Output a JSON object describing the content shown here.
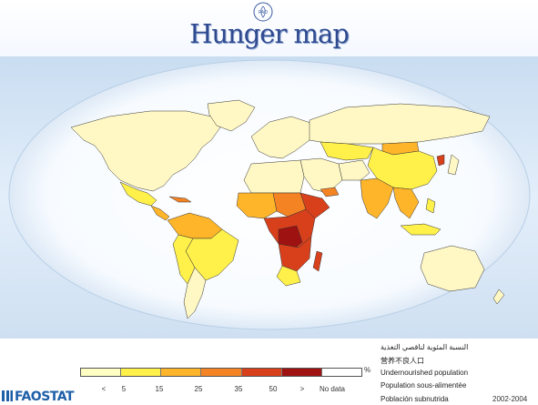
{
  "header": {
    "title": "Hunger map",
    "logo_text": "FAO"
  },
  "legend": {
    "unit": "%",
    "ticks": [
      "<",
      "5",
      "15",
      "25",
      "35",
      "50",
      ">",
      "No data"
    ],
    "colors": [
      "#ffffc4",
      "#fff04a",
      "#ffb52a",
      "#f48324",
      "#d8401c",
      "#9e1212",
      "#ffffff"
    ],
    "labels": {
      "arabic": "النسبة المئوية لناقصي التغذية",
      "chinese": "营养不良人口",
      "english": "Undernourished population",
      "french": "Population sous-alimentée",
      "spanish": "Población subnutrida"
    },
    "period": "2002-2004"
  },
  "footer": {
    "brand": "FAOSTAT"
  },
  "map_colors": {
    "ocean": "#cfe2f3",
    "globe": "#ffffff",
    "none_or_low": "#fff8c4",
    "low": "#fff04a",
    "moderate": "#ffb52a",
    "high": "#f48324",
    "very_high": "#d8401c",
    "extreme": "#9e1212"
  }
}
